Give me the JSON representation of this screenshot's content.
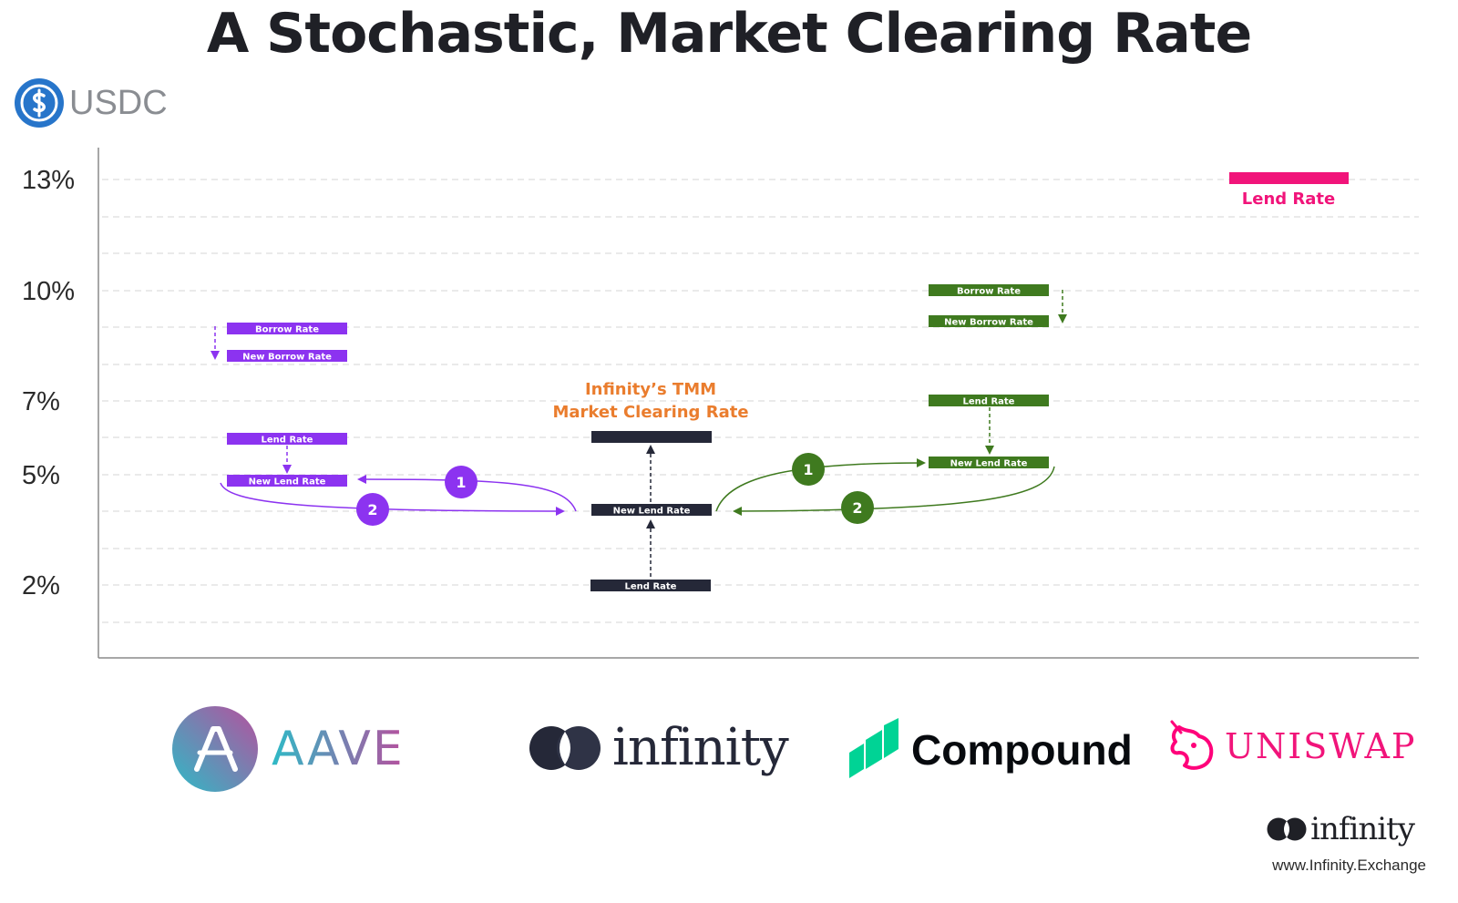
{
  "title": "A Stochastic, Market Clearing Rate",
  "asset": {
    "label": "USDC",
    "icon": "usdc-dollar-icon"
  },
  "y_axis": {
    "ticks": [
      "13%",
      "10%",
      "7%",
      "5%",
      "2%"
    ]
  },
  "aave": {
    "borrow_rate": "Borrow Rate",
    "new_borrow_rate": "New Borrow Rate",
    "lend_rate": "Lend Rate",
    "new_lend_rate": "New Lend Rate",
    "step1": "1",
    "step2": "2",
    "color": "#8c33f0"
  },
  "infinity": {
    "tmm_line1": "Infinity’s TMM",
    "tmm_line2": "Market Clearing Rate",
    "new_lend_rate": "New Lend Rate",
    "lend_rate": "Lend Rate",
    "color": "#252838"
  },
  "compound": {
    "borrow_rate": "Borrow Rate",
    "new_borrow_rate": "New Borrow Rate",
    "lend_rate": "Lend Rate",
    "new_lend_rate": "New Lend Rate",
    "step1": "1",
    "step2": "2",
    "color": "#3f7a1f"
  },
  "uniswap": {
    "lend_rate": "Lend Rate",
    "color": "#f1147a"
  },
  "logos": {
    "aave": "AAVE",
    "infinity": "infinity",
    "compound": "Compound",
    "uniswap": "UNISWAP"
  },
  "footer": {
    "brand": "infinity",
    "url": "www.Infinity.Exchange"
  }
}
